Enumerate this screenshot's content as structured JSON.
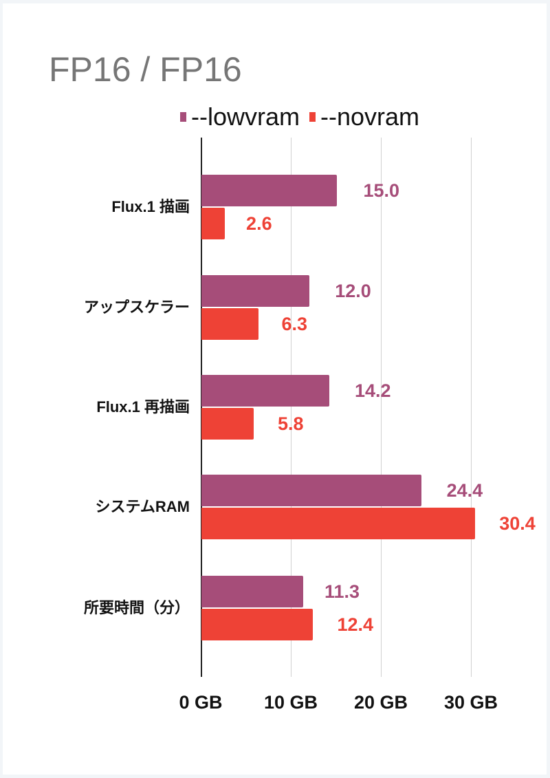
{
  "chart_data": {
    "type": "bar",
    "orientation": "horizontal",
    "title": "FP16 / FP16",
    "categories": [
      "Flux.1 描画",
      "アップスケラー",
      "Flux.1 再描画",
      "システムRAM",
      "所要時間（分）"
    ],
    "series": [
      {
        "name": "--lowvram",
        "color": "#a64d79",
        "values": [
          15.0,
          12.0,
          14.2,
          24.4,
          11.3
        ]
      },
      {
        "name": "--novram",
        "color": "#ee4236",
        "values": [
          2.6,
          6.3,
          5.8,
          30.4,
          12.4
        ]
      }
    ],
    "value_labels": {
      "lowvram": [
        "15.0",
        "12.0",
        "14.2",
        "24.4",
        "11.3"
      ],
      "novram": [
        "2.6",
        "6.3",
        "5.8",
        "30.4",
        "12.4"
      ]
    },
    "xlabel": "",
    "ylabel": "",
    "xlim": [
      0,
      32
    ],
    "x_ticks": [
      "0 GB",
      "10 GB",
      "20 GB",
      "30 GB"
    ],
    "grid": true,
    "legend_position": "top"
  },
  "legend": [
    {
      "label": "--lowvram",
      "color": "#a64d79"
    },
    {
      "label": "--novram",
      "color": "#ee4236"
    }
  ]
}
